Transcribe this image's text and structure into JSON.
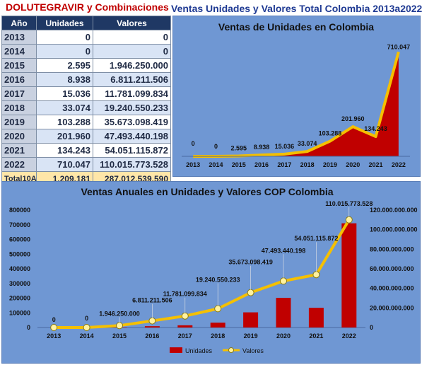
{
  "header": {
    "left_title": "DOLUTEGRAVIR y Combinaciones",
    "right_title": "Ventas Unidades y Valores Total Colombia 2013a2022"
  },
  "table": {
    "columns": [
      "Año",
      "Unidades",
      "Valores"
    ],
    "rows": [
      {
        "year": "2013",
        "units": "0",
        "values": "0"
      },
      {
        "year": "2014",
        "units": "0",
        "values": "0"
      },
      {
        "year": "2015",
        "units": "2.595",
        "values": "1.946.250.000"
      },
      {
        "year": "2016",
        "units": "8.938",
        "values": "6.811.211.506"
      },
      {
        "year": "2017",
        "units": "15.036",
        "values": "11.781.099.834"
      },
      {
        "year": "2018",
        "units": "33.074",
        "values": "19.240.550.233"
      },
      {
        "year": "2019",
        "units": "103.288",
        "values": "35.673.098.419"
      },
      {
        "year": "2020",
        "units": "201.960",
        "values": "47.493.440.198"
      },
      {
        "year": "2021",
        "units": "134.243",
        "values": "54.051.115.872"
      },
      {
        "year": "2022",
        "units": "710.047",
        "values": "110.015.773.528"
      }
    ],
    "total": {
      "label": "Total10A",
      "units": "1.209.181",
      "values": "287.012.539.590"
    }
  },
  "chart_data": [
    {
      "type": "area",
      "title": "Ventas de Unidades en Colombia",
      "categories": [
        "2013",
        "2014",
        "2015",
        "2016",
        "2017",
        "2018",
        "2019",
        "2020",
        "2021",
        "2022"
      ],
      "values": [
        0,
        0,
        2595,
        8938,
        15036,
        33074,
        103288,
        201960,
        134243,
        710047
      ],
      "data_labels": [
        "0",
        "0",
        "2.595",
        "8.938",
        "15.036",
        "33.074",
        "103.288",
        "201.960",
        "134.243",
        "710.047"
      ],
      "ylim": [
        0,
        760000
      ],
      "colors": {
        "area": "#c00000",
        "line": "#f5c000",
        "background": "#6f97d3"
      }
    },
    {
      "type": "bar",
      "title": "Ventas Anuales en Unidades y Valores COP Colombia",
      "categories": [
        "2013",
        "2014",
        "2015",
        "2016",
        "2017",
        "2018",
        "2019",
        "2020",
        "2021",
        "2022"
      ],
      "left_ticks": [
        "800000",
        "700000",
        "600000",
        "500000",
        "400000",
        "300000",
        "200000",
        "100000",
        "0"
      ],
      "right_ticks": [
        "120.000.000.000",
        "100.000.000.000",
        "80.000.000.000",
        "60.000.000.000",
        "40.000.000.000",
        "20.000.000.000",
        "0"
      ],
      "ylim_left": [
        0,
        800000
      ],
      "ylim_right": [
        0,
        120000000000
      ],
      "series": [
        {
          "name": "Unidades",
          "axis": "left",
          "type": "bar",
          "color": "#c00000",
          "values": [
            0,
            0,
            2595,
            8938,
            15036,
            33074,
            103288,
            201960,
            134243,
            710047
          ]
        },
        {
          "name": "Valores",
          "axis": "right",
          "type": "line",
          "color": "#f5c000",
          "values": [
            0,
            0,
            1946250000,
            6811211506,
            11781099834,
            19240550233,
            35673098419,
            47493440198,
            54051115872,
            110015773528
          ],
          "data_labels": [
            "0",
            "0",
            "1.946.250.000",
            "6.811.211.506",
            "11.781.099.834",
            "19.240.550.233",
            "35.673.098.419",
            "47.493.440.198",
            "54.051.115.872",
            "110.015.773.528"
          ]
        }
      ],
      "legend": "bottom"
    }
  ]
}
